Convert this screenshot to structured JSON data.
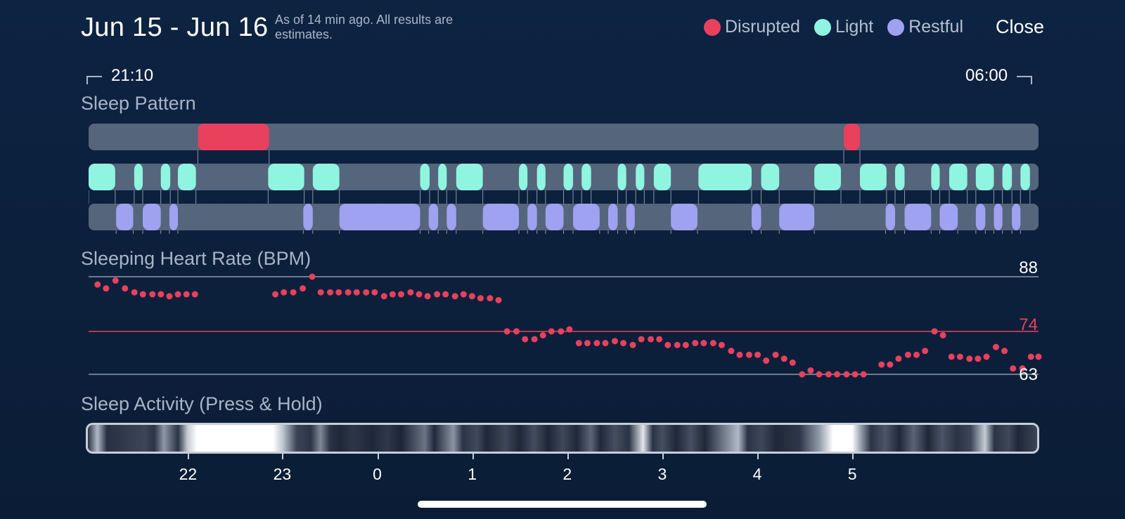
{
  "header": {
    "title": "Jun 15 - Jun 16",
    "subtitle": "As of 14 min ago. All results are estimates.",
    "close_label": "Close"
  },
  "legend": [
    {
      "label": "Disrupted",
      "color": "#e8405d"
    },
    {
      "label": "Light",
      "color": "#8ff5e0"
    },
    {
      "label": "Restful",
      "color": "#9ea2f0"
    }
  ],
  "time_range": {
    "start": "21:10",
    "end": "06:00"
  },
  "sleep_pattern": {
    "label": "Sleep Pattern",
    "track_color": "#55657c",
    "disrupted": [
      [
        0.115,
        0.19
      ],
      [
        0.795,
        0.812
      ]
    ],
    "light": [
      [
        0.0,
        0.028
      ],
      [
        0.048,
        0.057
      ],
      [
        0.076,
        0.086
      ],
      [
        0.094,
        0.113
      ],
      [
        0.189,
        0.227
      ],
      [
        0.236,
        0.264
      ],
      [
        0.349,
        0.359
      ],
      [
        0.368,
        0.377
      ],
      [
        0.387,
        0.415
      ],
      [
        0.453,
        0.462
      ],
      [
        0.472,
        0.481
      ],
      [
        0.5,
        0.51
      ],
      [
        0.519,
        0.529
      ],
      [
        0.557,
        0.566
      ],
      [
        0.576,
        0.585
      ],
      [
        0.595,
        0.613
      ],
      [
        0.642,
        0.698
      ],
      [
        0.708,
        0.727
      ],
      [
        0.764,
        0.792
      ],
      [
        0.812,
        0.84
      ],
      [
        0.849,
        0.859
      ],
      [
        0.887,
        0.896
      ],
      [
        0.906,
        0.925
      ],
      [
        0.934,
        0.953
      ],
      [
        0.962,
        0.972
      ],
      [
        0.981,
        0.991
      ]
    ],
    "restful": [
      [
        0.029,
        0.047
      ],
      [
        0.057,
        0.076
      ],
      [
        0.085,
        0.094
      ],
      [
        0.226,
        0.236
      ],
      [
        0.264,
        0.349
      ],
      [
        0.358,
        0.368
      ],
      [
        0.377,
        0.387
      ],
      [
        0.415,
        0.453
      ],
      [
        0.462,
        0.472
      ],
      [
        0.481,
        0.5
      ],
      [
        0.51,
        0.538
      ],
      [
        0.547,
        0.557
      ],
      [
        0.566,
        0.575
      ],
      [
        0.613,
        0.641
      ],
      [
        0.698,
        0.708
      ],
      [
        0.727,
        0.764
      ],
      [
        0.839,
        0.849
      ],
      [
        0.859,
        0.887
      ],
      [
        0.896,
        0.915
      ],
      [
        0.934,
        0.944
      ],
      [
        0.953,
        0.962
      ],
      [
        0.972,
        0.981
      ]
    ]
  },
  "heart_rate": {
    "label": "Sleeping Heart Rate (BPM)",
    "max_label": "88",
    "avg_label": "74",
    "min_label": "63",
    "max": 88,
    "avg": 74,
    "min": 63,
    "points": [
      [
        0.005,
        86
      ],
      [
        0.014,
        85
      ],
      [
        0.024,
        87
      ],
      [
        0.034,
        85
      ],
      [
        0.044,
        84
      ],
      [
        0.053,
        83.5
      ],
      [
        0.063,
        83.5
      ],
      [
        0.072,
        83.5
      ],
      [
        0.081,
        83
      ],
      [
        0.09,
        83.5
      ],
      [
        0.099,
        83.5
      ],
      [
        0.108,
        83.5
      ],
      [
        0.193,
        83.5
      ],
      [
        0.202,
        84
      ],
      [
        0.212,
        84
      ],
      [
        0.222,
        85
      ],
      [
        0.232,
        88
      ],
      [
        0.241,
        84
      ],
      [
        0.251,
        84
      ],
      [
        0.26,
        84
      ],
      [
        0.27,
        84
      ],
      [
        0.279,
        84
      ],
      [
        0.289,
        84
      ],
      [
        0.298,
        84
      ],
      [
        0.308,
        83
      ],
      [
        0.317,
        83.5
      ],
      [
        0.326,
        83.5
      ],
      [
        0.336,
        84
      ],
      [
        0.345,
        83.5
      ],
      [
        0.354,
        83
      ],
      [
        0.364,
        83.5
      ],
      [
        0.373,
        83.5
      ],
      [
        0.383,
        83
      ],
      [
        0.392,
        83.5
      ],
      [
        0.401,
        83
      ],
      [
        0.41,
        82.5
      ],
      [
        0.42,
        82.5
      ],
      [
        0.429,
        82
      ],
      [
        0.438,
        74
      ],
      [
        0.448,
        74
      ],
      [
        0.457,
        72
      ],
      [
        0.467,
        72
      ],
      [
        0.476,
        73
      ],
      [
        0.485,
        74
      ],
      [
        0.495,
        74
      ],
      [
        0.504,
        74.5
      ],
      [
        0.514,
        71
      ],
      [
        0.523,
        71
      ],
      [
        0.533,
        71
      ],
      [
        0.542,
        71
      ],
      [
        0.552,
        71.5
      ],
      [
        0.561,
        71
      ],
      [
        0.571,
        70.5
      ],
      [
        0.58,
        72
      ],
      [
        0.59,
        72
      ],
      [
        0.599,
        72
      ],
      [
        0.608,
        70.5
      ],
      [
        0.618,
        70.5
      ],
      [
        0.627,
        70.5
      ],
      [
        0.637,
        71
      ],
      [
        0.646,
        71
      ],
      [
        0.656,
        71
      ],
      [
        0.665,
        70.5
      ],
      [
        0.675,
        69
      ],
      [
        0.684,
        68
      ],
      [
        0.694,
        68
      ],
      [
        0.703,
        68
      ],
      [
        0.712,
        66.5
      ],
      [
        0.722,
        68
      ],
      [
        0.731,
        67
      ],
      [
        0.74,
        66
      ],
      [
        0.75,
        63
      ],
      [
        0.759,
        64
      ],
      [
        0.768,
        63
      ],
      [
        0.778,
        63
      ],
      [
        0.787,
        63
      ],
      [
        0.797,
        63
      ],
      [
        0.806,
        63
      ],
      [
        0.815,
        63
      ],
      [
        0.834,
        65.5
      ],
      [
        0.843,
        65.5
      ],
      [
        0.852,
        67
      ],
      [
        0.862,
        68
      ],
      [
        0.871,
        68
      ],
      [
        0.88,
        69
      ],
      [
        0.89,
        74
      ],
      [
        0.899,
        73
      ],
      [
        0.908,
        67.5
      ],
      [
        0.917,
        67.5
      ],
      [
        0.927,
        67
      ],
      [
        0.936,
        67
      ],
      [
        0.945,
        67.5
      ],
      [
        0.955,
        70
      ],
      [
        0.964,
        69
      ],
      [
        0.973,
        64.5
      ],
      [
        0.983,
        64.5
      ],
      [
        0.992,
        67.5
      ],
      [
        1.0,
        67.5
      ]
    ]
  },
  "activity": {
    "label": "Sleep Activity (Press & Hold)",
    "ticks": [
      {
        "label": "22",
        "pos": 0.094
      },
      {
        "label": "23",
        "pos": 0.208
      },
      {
        "label": "0",
        "pos": 0.323
      },
      {
        "label": "1",
        "pos": 0.438
      },
      {
        "label": "2",
        "pos": 0.553
      },
      {
        "label": "3",
        "pos": 0.668
      },
      {
        "label": "4",
        "pos": 0.783
      },
      {
        "label": "5",
        "pos": 0.898
      }
    ]
  }
}
